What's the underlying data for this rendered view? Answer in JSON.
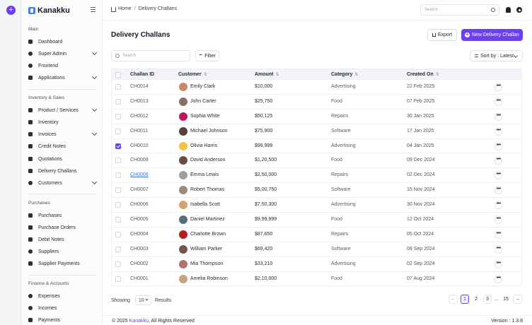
{
  "app": {
    "brand": "Kanakku"
  },
  "sidebar": {
    "sections": [
      {
        "title": "Main",
        "items": [
          "Dashboard",
          "Super Admin",
          "Frontend",
          "Applications"
        ]
      },
      {
        "title": "Inventory & Sales",
        "items": [
          "Product / Services",
          "Inventory",
          "Invoices",
          "Credit Notes",
          "Quotations",
          "Delivery Challans",
          "Customers"
        ]
      },
      {
        "title": "Purchases",
        "items": [
          "Purchases",
          "Purchase Orders",
          "Debit Notes",
          "Suppliers",
          "Supplier Payments"
        ]
      },
      {
        "title": "Finance & Accounts",
        "items": [
          "Expenses",
          "Incomes",
          "Payments"
        ]
      }
    ]
  },
  "topbar": {
    "breadcrumb_home": "Home",
    "breadcrumb_sep": "/",
    "breadcrumb_current": "Delivery Challans",
    "search_placeholder": "Search"
  },
  "page": {
    "title": "Delivery Challans",
    "export_label": "Export",
    "new_label": "New Delivery Challan",
    "search_placeholder": "Search",
    "filter_label": "Filter",
    "sort_label": "Sort by : Latest"
  },
  "table": {
    "columns": [
      "Challan ID",
      "Customer",
      "Amount",
      "Category",
      "Created On"
    ],
    "rows": [
      {
        "id": "CH0014",
        "customer": "Emily Clark",
        "amount": "$10,000",
        "category": "Advertising",
        "date": "22 Feb 2025",
        "checked": false,
        "link": false,
        "avatar": "#c98a6b"
      },
      {
        "id": "CH0013",
        "customer": "John Carter",
        "amount": "$25,750",
        "category": "Food",
        "date": "07 Feb 2025",
        "checked": false,
        "link": false,
        "avatar": "#8d6e63"
      },
      {
        "id": "CH0012",
        "customer": "Sophia White",
        "amount": "$50,125",
        "category": "Repairs",
        "date": "30 Jan 2025",
        "checked": false,
        "link": false,
        "avatar": "#c2185b"
      },
      {
        "id": "CH0011",
        "customer": "Michael Johnson",
        "amount": "$75,900",
        "category": "Software",
        "date": "17 Jan 2025",
        "checked": false,
        "link": false,
        "avatar": "#5d4037"
      },
      {
        "id": "CH0010",
        "customer": "Olivia Harris",
        "amount": "$99,999",
        "category": "Advertising",
        "date": "04 Jan 2025",
        "checked": true,
        "link": false,
        "avatar": "#f6c244"
      },
      {
        "id": "CH0009",
        "customer": "David Anderson",
        "amount": "$1,20,500",
        "category": "Food",
        "date": "09 Dec 2024",
        "checked": false,
        "link": false,
        "avatar": "#6d4c41"
      },
      {
        "id": "CH0008",
        "customer": "Emma Lewis",
        "amount": "$2,50,000",
        "category": "Repairs",
        "date": "02 Dec 2024",
        "checked": false,
        "link": true,
        "avatar": "#9e9e9e"
      },
      {
        "id": "CH0007",
        "customer": "Robert Thomas",
        "amount": "$5,00,750",
        "category": "Software",
        "date": "15 Nov 2024",
        "checked": false,
        "link": false,
        "avatar": "#a1887f"
      },
      {
        "id": "CH0006",
        "customer": "Isabella Scott",
        "amount": "$7,50,300",
        "category": "Advertising",
        "date": "30 Nov 2024",
        "checked": false,
        "link": false,
        "avatar": "#d4a373"
      },
      {
        "id": "CH0005",
        "customer": "Daniel Martinez",
        "amount": "$9,99,999",
        "category": "Food",
        "date": "12 Oct 2024",
        "checked": false,
        "link": false,
        "avatar": "#546e7a"
      },
      {
        "id": "CH0004",
        "customer": "Charlotte Brown",
        "amount": "$87,650",
        "category": "Repairs",
        "date": "05 Oct 2024",
        "checked": false,
        "link": false,
        "avatar": "#b71c1c"
      },
      {
        "id": "CH0003",
        "customer": "William Parker",
        "amount": "$69,420",
        "category": "Software",
        "date": "09 Sep 2024",
        "checked": false,
        "link": false,
        "avatar": "#795548"
      },
      {
        "id": "CH0002",
        "customer": "Mia Thompson",
        "amount": "$33,210",
        "category": "Advertising",
        "date": "02 Sep 2024",
        "checked": false,
        "link": false,
        "avatar": "#b0746b"
      },
      {
        "id": "CH0001",
        "customer": "Amelia Robinson",
        "amount": "$2,10,000",
        "category": "Food",
        "date": "07 Aug 2024",
        "checked": false,
        "link": false,
        "avatar": "#c9a27e"
      }
    ],
    "more_label": "•••"
  },
  "pagination": {
    "showing_label": "Showing",
    "per_page": "10",
    "results_label": "Results",
    "prev": "←",
    "pages": [
      "1",
      "2",
      "3"
    ],
    "ellipsis": "...",
    "last": "15",
    "next": "→"
  },
  "footer": {
    "copyright_prefix": "© 2025",
    "copyright_brand": "Kanakku",
    "copyright_suffix": ", All Rights Reserved",
    "version": "Version : 1.3.8"
  },
  "colors": {
    "accent": "#6c3ff5",
    "link": "#3b6fe0"
  }
}
